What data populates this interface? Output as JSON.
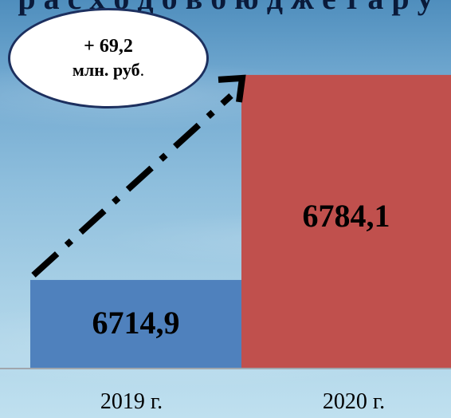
{
  "header": {
    "partial_title": "р а с х о д о в   б ю д ж е т а   р у"
  },
  "annotation": {
    "change": "+ 69,2",
    "unit": "млн. руб",
    "unit_suffix": "."
  },
  "colors": {
    "bar_2019": "#4f81bd",
    "bar_2020": "#c0504d",
    "axis": "#a0a6ad",
    "arrow": "#000000"
  },
  "chart_data": {
    "type": "bar",
    "categories": [
      "2019 г.",
      "2020 г."
    ],
    "values": [
      6714.9,
      6784.1
    ],
    "value_labels": [
      "6714,9",
      "6784,1"
    ],
    "title": "",
    "xlabel": "",
    "ylabel": "",
    "ylim": [
      6685,
      6790
    ],
    "grid": false,
    "legend": "none"
  }
}
